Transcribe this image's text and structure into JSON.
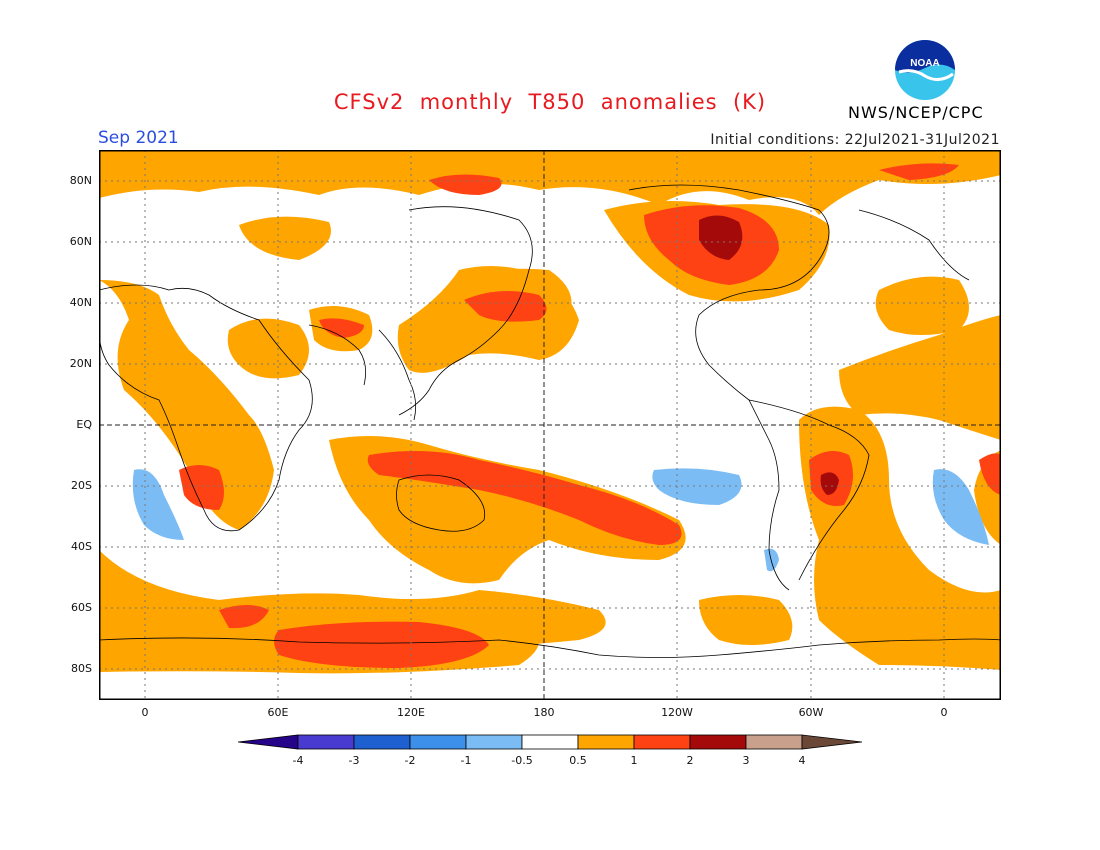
{
  "title": "CFSv2  monthly  T850  anomalies  (K)",
  "period": "Sep 2021",
  "initial_conditions": "Initial  conditions: 22Jul2021-31Jul2021",
  "agency": "NWS/NCEP/CPC",
  "logo_text": "NOAA",
  "lat_labels": [
    "80N",
    "60N",
    "40N",
    "20N",
    "EQ",
    "20S",
    "40S",
    "60S",
    "80S"
  ],
  "lon_labels": [
    "0",
    "60E",
    "120E",
    "180",
    "120W",
    "60W",
    "0"
  ],
  "colorbar": {
    "ticks": [
      "-4",
      "-3",
      "-2",
      "-1",
      "-0.5",
      "0.5",
      "1",
      "2",
      "3",
      "4"
    ],
    "colors": [
      "#26048a",
      "#4a3bd0",
      "#1f60d0",
      "#3c90ea",
      "#7cbcf4",
      "#ffffff",
      "#ffa500",
      "#ff4213",
      "#a50a0a",
      "#c8a08c",
      "#6b4737"
    ]
  },
  "colors": {
    "warm_1": "#ffa500",
    "warm_2": "#ff4213",
    "warm_3": "#a50a0a",
    "cool_1": "#7cbcf4"
  }
}
